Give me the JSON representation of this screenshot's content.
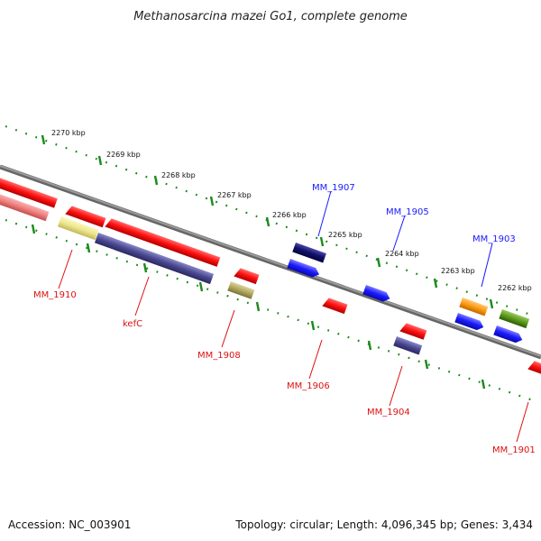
{
  "title": "Methanosarcina mazei Go1, complete genome",
  "footer": {
    "accession": "Accession: NC_003901",
    "summary": "Topology: circular; Length: 4,096,345 bp; Genes: 3,434"
  },
  "ticks": [
    "2270 kbp",
    "2269 kbp",
    "2268 kbp",
    "2267 kbp",
    "2266 kbp",
    "2265 kbp",
    "2264 kbp",
    "2263 kbp",
    "2262 kbp"
  ],
  "labels": {
    "forward": [
      "MM_1907",
      "MM_1905",
      "MM_1903"
    ],
    "reverse": [
      "MM_1910",
      "kefC",
      "MM_1908",
      "MM_1906",
      "MM_1904",
      "MM_1901"
    ]
  },
  "colors": {
    "red": "#ff1a1a",
    "pink": "#f08080",
    "yellow": "#eee68a",
    "slate": "#4a4890",
    "navy": "#10106a",
    "blue": "#1a1aff",
    "olive": "#b0a860",
    "orange": "#ff9a10",
    "green": "#5a9a1a",
    "backbone": "#888888",
    "tick": "#1a8a1a",
    "label_blue": "#1a1aff",
    "label_red": "#dd1111"
  }
}
